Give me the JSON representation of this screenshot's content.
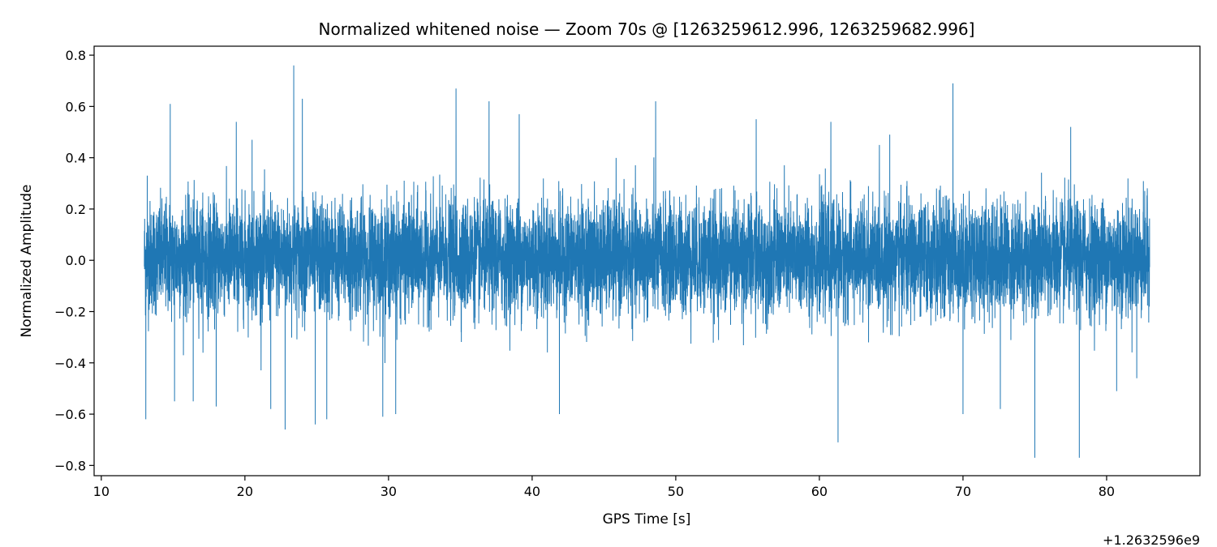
{
  "chart_data": {
    "type": "line",
    "title": "Normalized whitened noise — Zoom 70s @ [1263259612.996, 1263259682.996]",
    "xlabel": "GPS Time [s]",
    "ylabel": "Normalized Amplitude",
    "x_offset_label": "+1.2632596e9",
    "xlim": [
      9.5,
      86.5
    ],
    "ylim": [
      -0.84,
      0.835
    ],
    "x_ticks": [
      10,
      20,
      30,
      40,
      50,
      60,
      70,
      80
    ],
    "x_tick_labels": [
      "10",
      "20",
      "30",
      "40",
      "50",
      "60",
      "70",
      "80"
    ],
    "y_ticks": [
      -0.8,
      -0.6,
      -0.4,
      -0.2,
      0.0,
      0.2,
      0.4,
      0.6,
      0.8
    ],
    "y_tick_labels": [
      "−0.8",
      "−0.6",
      "−0.4",
      "−0.2",
      "0.0",
      "0.2",
      "0.4",
      "0.6",
      "0.8"
    ],
    "grid": false,
    "series": [
      {
        "color": "#1f77b4",
        "x_range": [
          12.996,
          82.996
        ],
        "typical_envelope": [
          -0.25,
          0.27
        ],
        "spikes": [
          {
            "x": 13.1,
            "y": -0.62
          },
          {
            "x": 13.2,
            "y": 0.33
          },
          {
            "x": 14.8,
            "y": 0.61
          },
          {
            "x": 15.1,
            "y": -0.55
          },
          {
            "x": 16.4,
            "y": -0.55
          },
          {
            "x": 18.0,
            "y": -0.57
          },
          {
            "x": 19.4,
            "y": 0.54
          },
          {
            "x": 20.5,
            "y": 0.47
          },
          {
            "x": 21.8,
            "y": -0.58
          },
          {
            "x": 22.8,
            "y": -0.66
          },
          {
            "x": 23.4,
            "y": 0.76
          },
          {
            "x": 24.0,
            "y": 0.63
          },
          {
            "x": 24.9,
            "y": -0.64
          },
          {
            "x": 25.7,
            "y": -0.62
          },
          {
            "x": 29.6,
            "y": -0.61
          },
          {
            "x": 30.5,
            "y": -0.6
          },
          {
            "x": 34.7,
            "y": 0.67
          },
          {
            "x": 37.0,
            "y": 0.62
          },
          {
            "x": 39.1,
            "y": 0.57
          },
          {
            "x": 41.9,
            "y": -0.6
          },
          {
            "x": 48.6,
            "y": 0.62
          },
          {
            "x": 55.6,
            "y": 0.55
          },
          {
            "x": 60.8,
            "y": 0.54
          },
          {
            "x": 61.3,
            "y": -0.71
          },
          {
            "x": 64.9,
            "y": 0.49
          },
          {
            "x": 69.3,
            "y": 0.69
          },
          {
            "x": 70.0,
            "y": -0.6
          },
          {
            "x": 72.6,
            "y": -0.58
          },
          {
            "x": 75.0,
            "y": -0.77
          },
          {
            "x": 77.5,
            "y": 0.52
          },
          {
            "x": 78.1,
            "y": -0.77
          },
          {
            "x": 80.7,
            "y": -0.51
          },
          {
            "x": 82.1,
            "y": -0.46
          }
        ]
      }
    ]
  }
}
